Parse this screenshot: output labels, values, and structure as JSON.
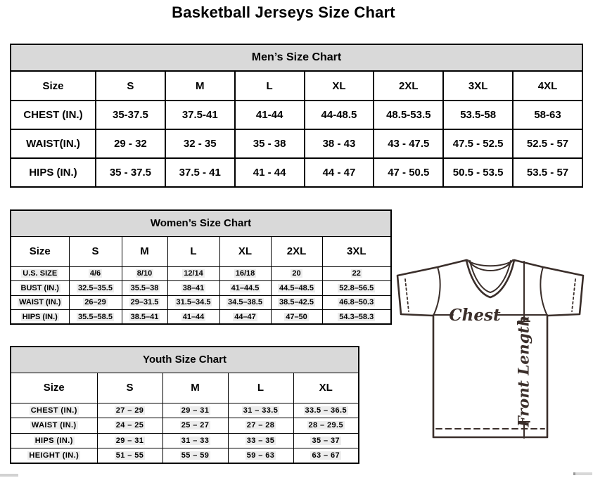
{
  "page_title": "Basketball Jerseys Size Chart",
  "mens_chart": {
    "title": "Men’s Size Chart",
    "columns": [
      "Size",
      "S",
      "M",
      "L",
      "XL",
      "2XL",
      "3XL",
      "4XL"
    ],
    "rows": [
      {
        "label": "CHEST (IN.)",
        "values": [
          "35-37.5",
          "37.5-41",
          "41-44",
          "44-48.5",
          "48.5-53.5",
          "53.5-58",
          "58-63"
        ]
      },
      {
        "label": "WAIST(IN.)",
        "values": [
          "29 - 32",
          "32 - 35",
          "35 - 38",
          "38 - 43",
          "43 - 47.5",
          "47.5 - 52.5",
          "52.5 - 57"
        ]
      },
      {
        "label": "HIPS (IN.)",
        "values": [
          "35 - 37.5",
          "37.5 - 41",
          "41 - 44",
          "44 - 47",
          "47 - 50.5",
          "50.5 - 53.5",
          "53.5 - 57"
        ]
      }
    ]
  },
  "womens_chart": {
    "title": "Women’s Size Chart",
    "columns": [
      "Size",
      "S",
      "M",
      "L",
      "XL",
      "2XL",
      "3XL"
    ],
    "rows": [
      {
        "label": "U.S. SIZE",
        "values": [
          "4/6",
          "8/10",
          "12/14",
          "16/18",
          "20",
          "22"
        ]
      },
      {
        "label": "BUST (IN.)",
        "values": [
          "32.5–35.5",
          "35.5–38",
          "38–41",
          "41–44.5",
          "44.5–48.5",
          "52.8–56.5"
        ]
      },
      {
        "label": "WAIST (IN.)",
        "values": [
          "26–29",
          "29–31.5",
          "31.5–34.5",
          "34.5–38.5",
          "38.5–42.5",
          "46.8–50.3"
        ]
      },
      {
        "label": "HIPS (IN.)",
        "values": [
          "35.5–58.5",
          "38.5–41",
          "41–44",
          "44–47",
          "47–50",
          "54.3–58.3"
        ]
      }
    ]
  },
  "youth_chart": {
    "title": "Youth Size Chart",
    "columns": [
      "Size",
      "S",
      "M",
      "L",
      "XL"
    ],
    "rows": [
      {
        "label": "CHEST (IN.)",
        "values": [
          "27 – 29",
          "29 – 31",
          "31 – 33.5",
          "33.5 – 36.5"
        ]
      },
      {
        "label": "WAIST (IN.)",
        "values": [
          "24 – 25",
          "25 – 27",
          "27 – 28",
          "28 – 29.5"
        ]
      },
      {
        "label": "HIPS (IN.)",
        "values": [
          "29 – 31",
          "31 – 33",
          "33 – 35",
          "35 – 37"
        ]
      },
      {
        "label": "HEIGHT (IN.)",
        "values": [
          "51 – 55",
          "55 – 59",
          "59 – 63",
          "63 – 67"
        ]
      }
    ]
  },
  "diagram": {
    "chest_label": "Chest",
    "front_length_label": "Front Length"
  },
  "colors": {
    "table_header_bg": "#d9d9d9",
    "table_border": "#000000",
    "diagram_line": "#3a2e2a"
  }
}
